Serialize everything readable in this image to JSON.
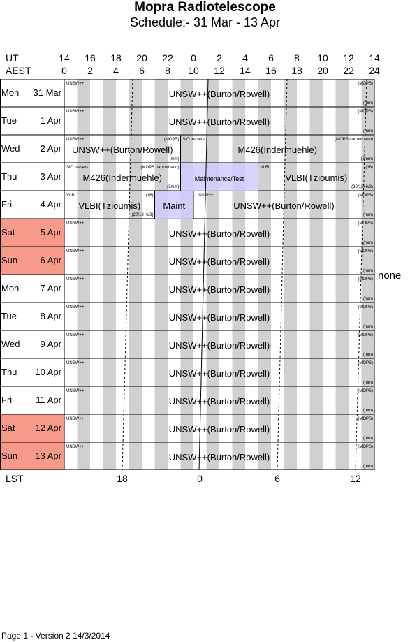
{
  "header": {
    "title": "Mopra Radiotelescope",
    "subtitle": "Schedule:- 31 Mar - 13 Apr"
  },
  "axes": {
    "ut_label": "UT",
    "aest_label": "AEST",
    "lst_label": "LST",
    "ut_ticks": [
      "14",
      "16",
      "18",
      "20",
      "22",
      "0",
      "2",
      "4",
      "6",
      "8",
      "10",
      "12",
      "14"
    ],
    "aest_ticks": [
      "0",
      "2",
      "4",
      "6",
      "8",
      "10",
      "12",
      "14",
      "16",
      "18",
      "20",
      "22",
      "24"
    ],
    "lst_ticks": [
      "18",
      "0",
      "6",
      "12"
    ]
  },
  "days": [
    {
      "dow": "Mon",
      "date": "31 Mar",
      "weekend": false
    },
    {
      "dow": "Tue",
      "date": "1 Apr",
      "weekend": false
    },
    {
      "dow": "Wed",
      "date": "2 Apr",
      "weekend": false
    },
    {
      "dow": "Thu",
      "date": "3 Apr",
      "weekend": false
    },
    {
      "dow": "Fri",
      "date": "4 Apr",
      "weekend": false
    },
    {
      "dow": "Sat",
      "date": "5 Apr",
      "weekend": true
    },
    {
      "dow": "Sun",
      "date": "6 Apr",
      "weekend": true
    },
    {
      "dow": "Mon",
      "date": "7 Apr",
      "weekend": false
    },
    {
      "dow": "Tue",
      "date": "8 Apr",
      "weekend": false
    },
    {
      "dow": "Wed",
      "date": "9 Apr",
      "weekend": false
    },
    {
      "dow": "Thu",
      "date": "10 Apr",
      "weekend": false
    },
    {
      "dow": "Fri",
      "date": "11 Apr",
      "weekend": false
    },
    {
      "dow": "Sat",
      "date": "12 Apr",
      "weekend": true
    },
    {
      "dow": "Sun",
      "date": "13 Apr",
      "weekend": true
    }
  ],
  "blocks": [
    {
      "row": 0,
      "start": 0,
      "end": 24,
      "label": "UNSW++(Burton/Rowell)",
      "tl": "UNSW++",
      "tr": "(MOPS)",
      "br": "(mm)",
      "fill": "none"
    },
    {
      "row": 1,
      "start": 0,
      "end": 24,
      "label": "UNSW++(Burton/Rowell)",
      "tl": "UNSW++",
      "tr": "(MOPS)",
      "br": "(mm)",
      "fill": "none"
    },
    {
      "row": 2,
      "start": 0,
      "end": 9,
      "label": "UNSW++(Burton/Rowell)",
      "tl": "UNSW++",
      "tr": "(MOPS)",
      "br": "(mm)",
      "fill": "none"
    },
    {
      "row": 2,
      "start": 9,
      "end": 24,
      "label": "M426(Indermuehle)",
      "tl": "SiO masers",
      "tr": "(MOPS narrowband)",
      "br": "(3mm)",
      "fill": "none"
    },
    {
      "row": 3,
      "start": 0,
      "end": 9,
      "label": "M426(Indermuehle)",
      "tl": "SiO masers",
      "tr": "(MOPS narrowband)",
      "br": "(3mm)",
      "fill": "none"
    },
    {
      "row": 3,
      "start": 9,
      "end": 15,
      "label": "Maintenance/Test",
      "tl": "",
      "tr": "",
      "br": "",
      "fill": "maint"
    },
    {
      "row": 3,
      "start": 15,
      "end": 24,
      "label": "VLBI(Tzioumis)",
      "tl": "VLBI",
      "tr": "(16)",
      "br": "(20/13+6/3)",
      "fill": "none"
    },
    {
      "row": 4,
      "start": 0,
      "end": 7,
      "label": "VLBI(Tzioumis)",
      "tl": "VLBI",
      "tr": "(16)",
      "br": "(20/13+6/3)",
      "fill": "none"
    },
    {
      "row": 4,
      "start": 7,
      "end": 10,
      "label": "Maint",
      "tl": "",
      "tr": "",
      "br": "",
      "fill": "maint"
    },
    {
      "row": 4,
      "start": 10,
      "end": 24,
      "label": "UNSW++(Burton/Rowell)",
      "tl": "UNSW++",
      "tr": "(MOPS)",
      "br": "(mm)",
      "fill": "none"
    },
    {
      "row": 5,
      "start": 0,
      "end": 24,
      "label": "UNSW++(Burton/Rowell)",
      "tl": "UNSW++",
      "tr": "(MOPS)",
      "br": "(mm)",
      "fill": "none"
    },
    {
      "row": 6,
      "start": 0,
      "end": 24,
      "label": "UNSW++(Burton/Rowell)",
      "tl": "UNSW++",
      "tr": "(MOPS)",
      "br": "(mm)",
      "fill": "none"
    },
    {
      "row": 7,
      "start": 0,
      "end": 24,
      "label": "UNSW++(Burton/Rowell)",
      "tl": "UNSW++",
      "tr": "(MOPS)",
      "br": "(mm)",
      "fill": "none"
    },
    {
      "row": 8,
      "start": 0,
      "end": 24,
      "label": "UNSW++(Burton/Rowell)",
      "tl": "UNSW++",
      "tr": "(MOPS)",
      "br": "(mm)",
      "fill": "none"
    },
    {
      "row": 9,
      "start": 0,
      "end": 24,
      "label": "UNSW++(Burton/Rowell)",
      "tl": "UNSW++",
      "tr": "(MOPS)",
      "br": "(mm)",
      "fill": "none"
    },
    {
      "row": 10,
      "start": 0,
      "end": 24,
      "label": "UNSW++(Burton/Rowell)",
      "tl": "UNSW++",
      "tr": "(MOPS)",
      "br": "(mm)",
      "fill": "none"
    },
    {
      "row": 11,
      "start": 0,
      "end": 24,
      "label": "UNSW++(Burton/Rowell)",
      "tl": "UNSW++",
      "tr": "(MOPS)",
      "br": "(mm)",
      "fill": "none"
    },
    {
      "row": 12,
      "start": 0,
      "end": 24,
      "label": "UNSW++(Burton/Rowell)",
      "tl": "UNSW++",
      "tr": "(MOPS)",
      "br": "(mm)",
      "fill": "none"
    },
    {
      "row": 13,
      "start": 0,
      "end": 24,
      "label": "UNSW++(Burton/Rowell)",
      "tl": "UNSW++",
      "tr": "(MOPS)",
      "br": "(mm)",
      "fill": "none"
    }
  ],
  "side_note": "none",
  "footer": "Page 1 - Version 2  14/3/2014",
  "colors": {
    "weekend": "#f79a8a",
    "maintenance": "#ccccff",
    "stripe": "#d0d0d0"
  }
}
